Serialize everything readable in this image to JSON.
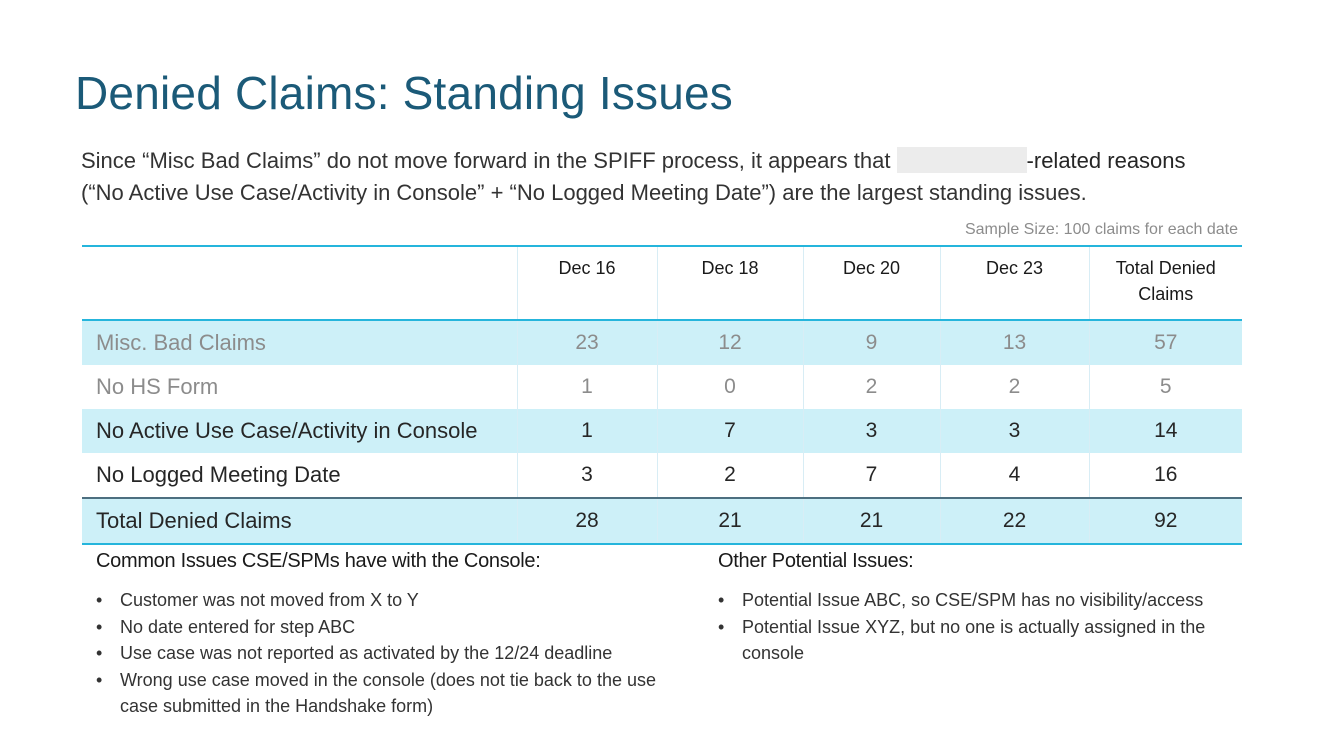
{
  "title": "Denied Claims: Standing Issues",
  "intro": {
    "line1_before": "Since “Misc Bad Claims” do not move forward in the SPIFF process, it appears that ",
    "line1_after": "-related reasons",
    "line2": "(“No Active Use Case/Activity in Console” + “No Logged Meeting Date”) are the largest standing issues."
  },
  "sample_size": "Sample Size: 100 claims for each date",
  "table": {
    "headers": [
      "",
      "Dec 16",
      "Dec 18",
      "Dec 20",
      "Dec 23",
      "Total Denied Claims"
    ],
    "rows": [
      {
        "label": "Misc. Bad Claims",
        "values": [
          "23",
          "12",
          "9",
          "13",
          "57"
        ]
      },
      {
        "label": "No HS Form",
        "values": [
          "1",
          "0",
          "2",
          "2",
          "5"
        ]
      },
      {
        "label": "No Active Use Case/Activity in Console",
        "values": [
          "1",
          "7",
          "3",
          "3",
          "14"
        ]
      },
      {
        "label": "No Logged Meeting Date",
        "values": [
          "3",
          "2",
          "7",
          "4",
          "16"
        ]
      },
      {
        "label": "Total Denied Claims",
        "values": [
          "28",
          "21",
          "21",
          "22",
          "92"
        ]
      }
    ]
  },
  "common_issues": {
    "heading": "Common Issues CSE/SPMs have with the Console:",
    "items": [
      "Customer was not moved from X to Y",
      "No date entered for step ABC",
      "Use case was not reported as activated by the 12/24 deadline",
      "Wrong use case moved in the console (does not tie back to the use case submitted in the Handshake form)"
    ]
  },
  "other_issues": {
    "heading": "Other Potential Issues:",
    "items": [
      "Potential Issue ABC, so CSE/SPM has no visibility/access",
      "Potential Issue XYZ, but no one is actually assigned in the console"
    ]
  },
  "colors": {
    "title": "#1b5a78",
    "accent_line": "#25b5dc",
    "row_highlight": "#cdf0f8",
    "muted_text": "#8c8c8c"
  }
}
